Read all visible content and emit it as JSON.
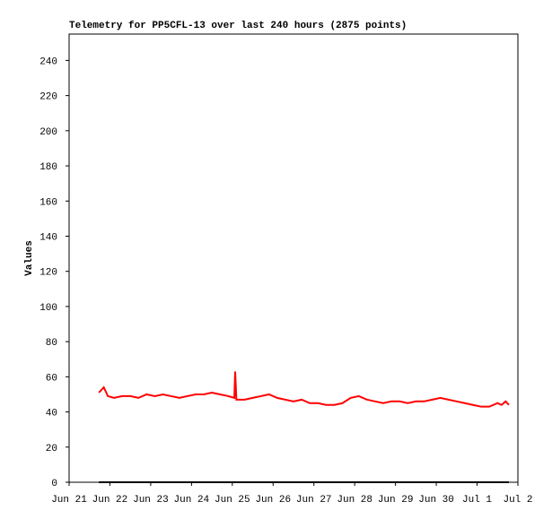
{
  "chart_data": {
    "type": "line",
    "title": "Telemetry for PP5CFL-13 over last 240 hours (2875 points)",
    "y_label": "Values",
    "xlim": [
      0,
      11
    ],
    "ylim": [
      0,
      255
    ],
    "xticks": [
      {
        "value": 0,
        "label": "Jun 21"
      },
      {
        "value": 1,
        "label": "Jun 22"
      },
      {
        "value": 2,
        "label": "Jun 23"
      },
      {
        "value": 3,
        "label": "Jun 24"
      },
      {
        "value": 4,
        "label": "Jun 25"
      },
      {
        "value": 5,
        "label": "Jun 26"
      },
      {
        "value": 6,
        "label": "Jun 27"
      },
      {
        "value": 7,
        "label": "Jun 28"
      },
      {
        "value": 8,
        "label": "Jun 29"
      },
      {
        "value": 9,
        "label": "Jun 30"
      },
      {
        "value": 10,
        "label": "Jul 1"
      },
      {
        "value": 11,
        "label": "Jul 2"
      }
    ],
    "yticks": [
      0,
      20,
      40,
      60,
      80,
      100,
      120,
      140,
      160,
      180,
      200,
      220,
      240
    ],
    "grid": false,
    "series": [
      {
        "color": "#ff0000",
        "x": [
          0.73,
          0.85,
          0.95,
          1.1,
          1.3,
          1.5,
          1.7,
          1.9,
          2.1,
          2.3,
          2.5,
          2.7,
          2.9,
          3.1,
          3.3,
          3.5,
          3.7,
          3.9,
          4.05,
          4.07,
          4.1,
          4.3,
          4.5,
          4.7,
          4.9,
          5.1,
          5.3,
          5.5,
          5.7,
          5.9,
          6.1,
          6.3,
          6.5,
          6.7,
          6.9,
          7.1,
          7.3,
          7.5,
          7.7,
          7.9,
          8.1,
          8.3,
          8.5,
          8.7,
          8.9,
          9.1,
          9.3,
          9.5,
          9.7,
          9.9,
          10.1,
          10.3,
          10.5,
          10.6,
          10.7,
          10.78
        ],
        "values": [
          51,
          54,
          49,
          48,
          49,
          49,
          48,
          50,
          49,
          50,
          49,
          48,
          49,
          50,
          50,
          51,
          50,
          49,
          48,
          63,
          47,
          47,
          48,
          49,
          50,
          48,
          47,
          46,
          47,
          45,
          45,
          44,
          44,
          45,
          48,
          49,
          47,
          46,
          45,
          46,
          46,
          45,
          46,
          46,
          47,
          48,
          47,
          46,
          45,
          44,
          43,
          43,
          45,
          44,
          46,
          44
        ]
      },
      {
        "color": "#000000",
        "x": [
          0.73,
          10.78
        ],
        "values": [
          0,
          0
        ]
      }
    ]
  }
}
